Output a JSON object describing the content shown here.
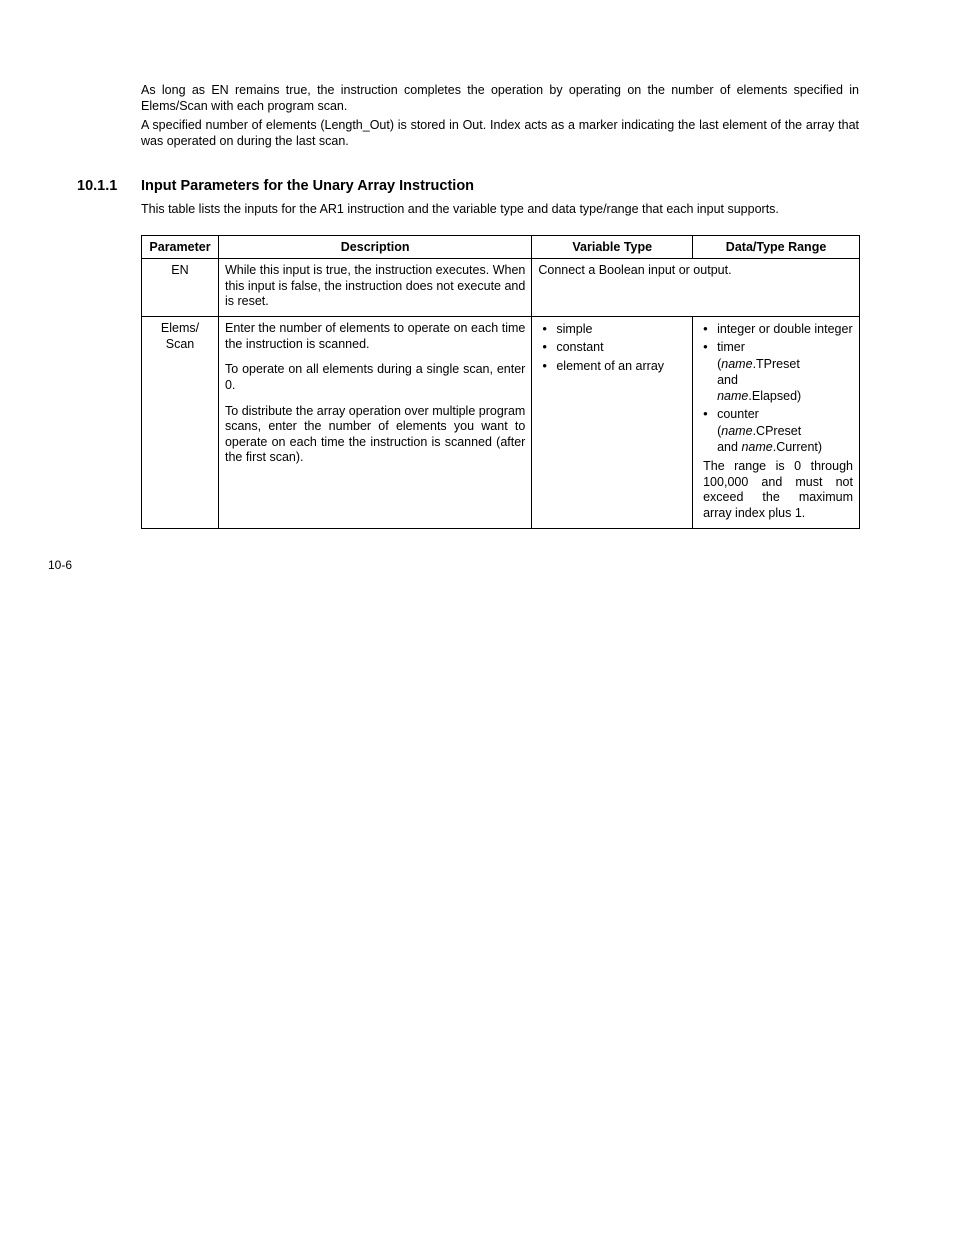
{
  "intro": {
    "p1": "As long as EN remains true, the instruction completes the operation by operating on the number of elements specified in Elems/Scan with each program scan.",
    "p2": "A specified number of elements (Length_Out) is stored in Out. Index acts as a marker indicating the last element of the array that was operated on during the last scan."
  },
  "section": {
    "number": "10.1.1",
    "title": "Input Parameters for the Unary Array Instruction",
    "description": "This table lists the inputs for the AR1 instruction and the variable type and data type/range that each input supports."
  },
  "table": {
    "headers": {
      "parameter": "Parameter",
      "description": "Description",
      "variable_type": "Variable Type",
      "data_range": "Data/Type Range"
    },
    "rows": {
      "en": {
        "parameter": "EN",
        "description": "While this input is true, the instruction executes. When this input is false, the instruction does not execute and is reset.",
        "vtype_span": "Connect a Boolean input or output."
      },
      "elems_scan": {
        "parameter_line1": "Elems/",
        "parameter_line2": "Scan",
        "desc_p1": "Enter the number of elements to operate on each time the instruction is scanned.",
        "desc_p2": "To operate on all elements during a single scan, enter 0.",
        "desc_p3": "To distribute the array operation over multiple program scans, enter the number of elements you want to operate on each time the instruction is scanned (after the first scan).",
        "vtype_items": {
          "i0": "simple",
          "i1": "constant",
          "i2": "element of an array"
        },
        "range": {
          "li0": "integer or double integer",
          "li1_a": "timer",
          "li1_b_pre": "(",
          "li1_b_name": "name",
          "li1_b_post": ".TPreset",
          "li1_c": "and",
          "li1_d_name": "name",
          "li1_d_post": ".Elapsed)",
          "li2_a": "counter",
          "li2_b_pre": "(",
          "li2_b_name": "name",
          "li2_b_post": ".CPreset",
          "li2_c_pre": "and ",
          "li2_c_name": "name",
          "li2_c_post": ".Current)",
          "note": "The range is 0 through 100,000 and must not exceed the maximum array index plus 1."
        }
      }
    }
  },
  "page_number": "10-6"
}
